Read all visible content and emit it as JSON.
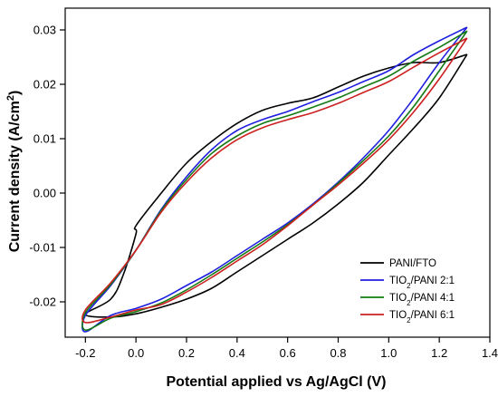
{
  "chart_data": {
    "type": "line",
    "xlabel": "Potential applied vs Ag/AgCl (V)",
    "ylabel_main": "Current density (A/cm",
    "ylabel_sup": "2",
    "ylabel_tail": ")",
    "xlim": [
      -0.28,
      1.4
    ],
    "ylim": [
      -0.0265,
      0.034
    ],
    "xticks": [
      -0.2,
      0.0,
      0.2,
      0.4,
      0.6,
      0.8,
      1.0,
      1.2,
      1.4
    ],
    "xtick_labels": [
      "-0.2",
      "0.0",
      "0.2",
      "0.4",
      "0.6",
      "0.8",
      "1.0",
      "1.2",
      "1.4"
    ],
    "yticks": [
      -0.02,
      -0.01,
      0.0,
      0.01,
      0.02,
      0.03
    ],
    "ytick_labels": [
      "-0.02",
      "-0.01",
      "0.00",
      "0.01",
      "0.02",
      "0.03"
    ],
    "grid": false,
    "legend_position": "bottom-right",
    "series": [
      {
        "name": "PANI/FTO",
        "color": "#000000",
        "x": [
          1.31,
          1.2,
          1.1,
          1.0,
          0.9,
          0.8,
          0.7,
          0.6,
          0.5,
          0.4,
          0.3,
          0.2,
          0.1,
          0.0,
          -0.1,
          -0.2,
          -0.1,
          -0.05,
          0.0,
          0.0,
          0.1,
          0.2,
          0.3,
          0.4,
          0.5,
          0.6,
          0.7,
          0.8,
          0.9,
          1.0,
          1.1,
          1.2,
          1.31
        ],
        "y": [
          0.0255,
          0.0175,
          0.012,
          0.007,
          0.002,
          -0.002,
          -0.0055,
          -0.0085,
          -0.0115,
          -0.0145,
          -0.0175,
          -0.0195,
          -0.021,
          -0.0222,
          -0.0228,
          -0.0223,
          -0.0195,
          -0.015,
          -0.0075,
          -0.006,
          0.0,
          0.0055,
          0.0095,
          0.0128,
          0.0152,
          0.0165,
          0.0175,
          0.0195,
          0.0215,
          0.023,
          0.024,
          0.024,
          0.0255
        ]
      },
      {
        "name": "TIO2/PANI 2:1",
        "color": "#1f1fe0",
        "x": [
          1.31,
          1.2,
          1.1,
          1.0,
          0.9,
          0.8,
          0.7,
          0.6,
          0.5,
          0.4,
          0.3,
          0.2,
          0.1,
          0.0,
          -0.1,
          -0.2,
          -0.2,
          -0.1,
          0.0,
          0.1,
          0.2,
          0.3,
          0.4,
          0.5,
          0.6,
          0.7,
          0.8,
          0.9,
          1.0,
          1.1,
          1.2,
          1.31
        ],
        "y": [
          0.0305,
          0.024,
          0.0175,
          0.0115,
          0.0065,
          0.002,
          -0.002,
          -0.0055,
          -0.0085,
          -0.0115,
          -0.0145,
          -0.017,
          -0.0195,
          -0.0212,
          -0.0225,
          -0.0255,
          -0.0225,
          -0.017,
          -0.0105,
          -0.003,
          0.003,
          0.008,
          0.0115,
          0.0135,
          0.015,
          0.0168,
          0.0185,
          0.0205,
          0.0225,
          0.0255,
          0.028,
          0.0305
        ]
      },
      {
        "name": "TIO2/PANI 4:1",
        "color": "#137a13",
        "x": [
          1.31,
          1.2,
          1.1,
          1.0,
          0.9,
          0.8,
          0.7,
          0.6,
          0.5,
          0.4,
          0.3,
          0.2,
          0.1,
          0.0,
          -0.1,
          -0.2,
          -0.2,
          -0.1,
          0.0,
          0.1,
          0.2,
          0.3,
          0.4,
          0.5,
          0.6,
          0.7,
          0.8,
          0.9,
          1.0,
          1.1,
          1.2,
          1.31
        ],
        "y": [
          0.0298,
          0.0225,
          0.016,
          0.0105,
          0.006,
          0.0018,
          -0.0022,
          -0.0058,
          -0.009,
          -0.012,
          -0.015,
          -0.0178,
          -0.0202,
          -0.0218,
          -0.023,
          -0.0252,
          -0.022,
          -0.0168,
          -0.0105,
          -0.0032,
          0.0025,
          0.0073,
          0.0105,
          0.0128,
          0.0142,
          0.0158,
          0.0175,
          0.0195,
          0.0215,
          0.0243,
          0.0268,
          0.0298
        ]
      },
      {
        "name": "TIO2/PANI 6:1",
        "color": "#cc2020",
        "x": [
          1.31,
          1.2,
          1.1,
          1.0,
          0.9,
          0.8,
          0.7,
          0.6,
          0.5,
          0.4,
          0.3,
          0.2,
          0.1,
          0.0,
          -0.1,
          -0.2,
          -0.2,
          -0.1,
          0.0,
          0.1,
          0.2,
          0.3,
          0.4,
          0.5,
          0.6,
          0.7,
          0.8,
          0.9,
          1.0,
          1.1,
          1.2,
          1.31
        ],
        "y": [
          0.0285,
          0.021,
          0.015,
          0.0098,
          0.0055,
          0.0015,
          -0.0022,
          -0.006,
          -0.0095,
          -0.0125,
          -0.0155,
          -0.0182,
          -0.0205,
          -0.0215,
          -0.0228,
          -0.0238,
          -0.0215,
          -0.0165,
          -0.0105,
          -0.0035,
          0.002,
          0.0065,
          0.0098,
          0.012,
          0.0135,
          0.0148,
          0.0165,
          0.0185,
          0.0205,
          0.0232,
          0.0258,
          0.0285
        ]
      }
    ],
    "legend": [
      {
        "label": "PANI/FTO",
        "color": "#000000",
        "base": "PANI/FTO",
        "sub": "",
        "rest": ""
      },
      {
        "label": "TIO2/PANI 2:1",
        "color": "#1f1fe0",
        "base": "TIO",
        "sub": "2",
        "rest": "/PANI 2:1"
      },
      {
        "label": "TIO2/PANI 4:1",
        "color": "#137a13",
        "base": "TIO",
        "sub": "2",
        "rest": "/PANI 4:1"
      },
      {
        "label": "TIO2/PANI 6:1",
        "color": "#cc2020",
        "base": "TIO",
        "sub": "2",
        "rest": "/PANI 6:1"
      }
    ]
  }
}
